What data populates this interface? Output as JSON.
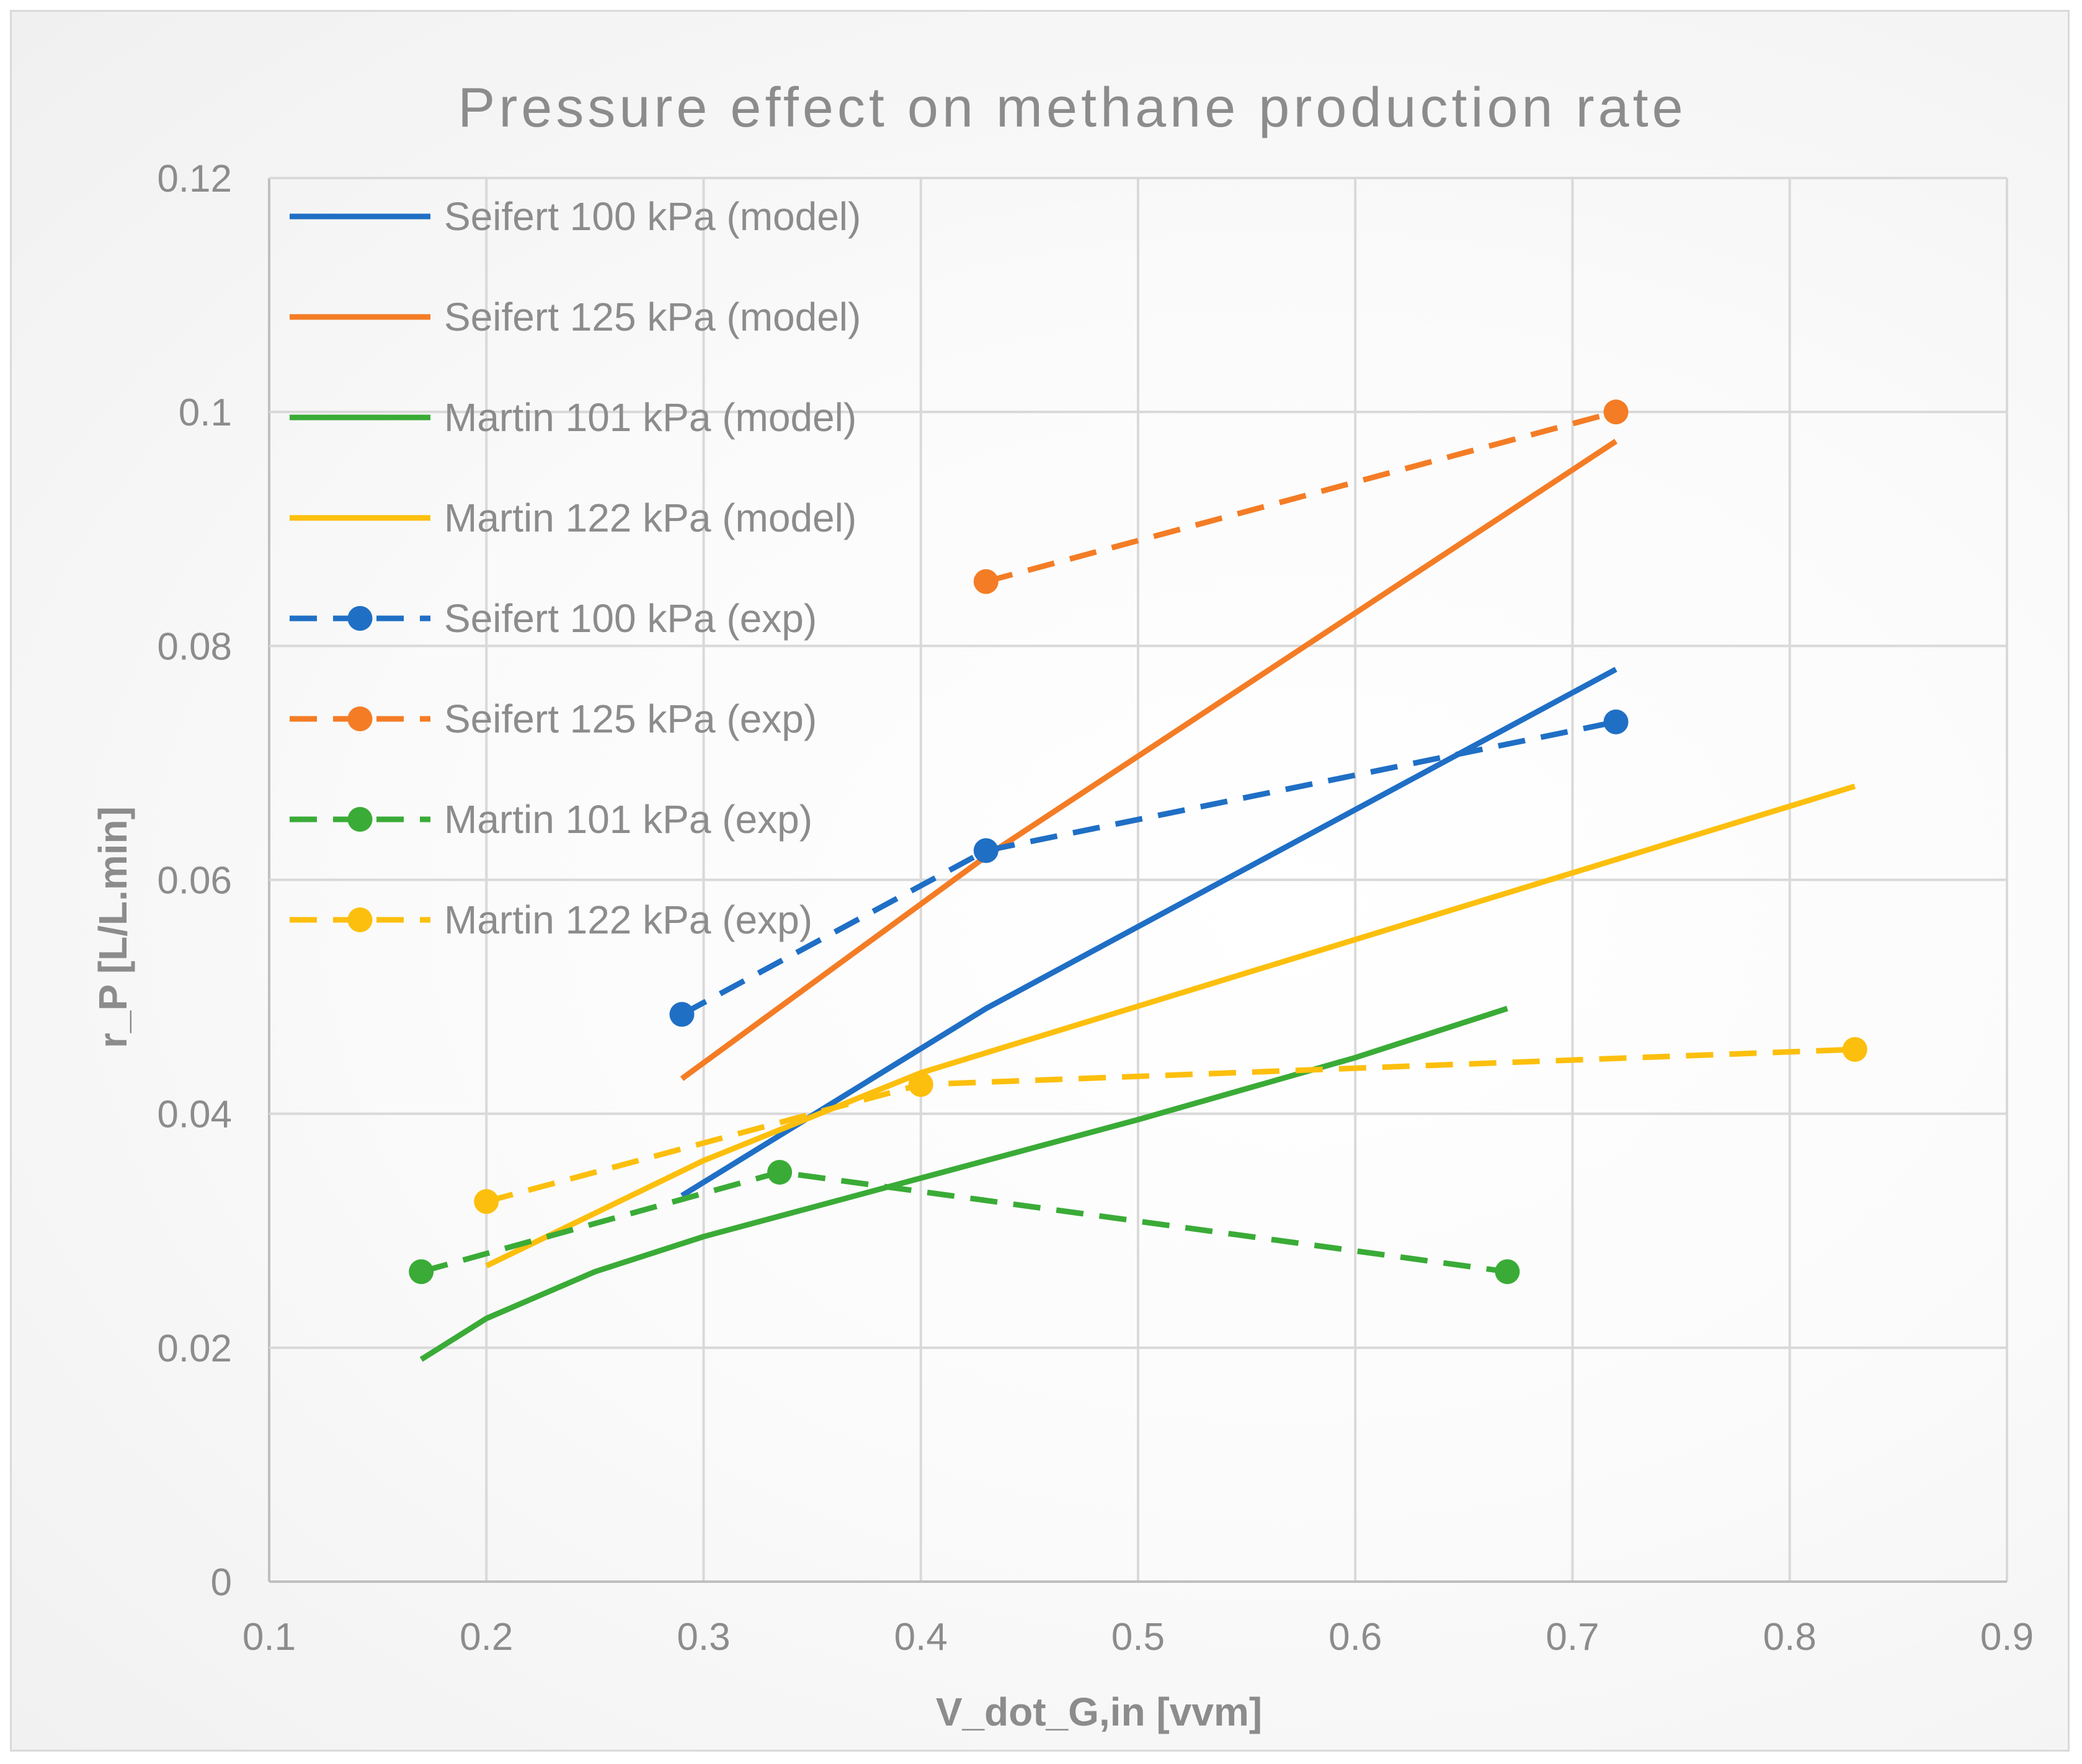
{
  "chart_data": {
    "type": "line",
    "title": "Pressure effect on methane production rate",
    "xlabel": "V_dot_G,in [vvm]",
    "ylabel": "r_P [L/L.min]",
    "xlim": [
      0.1,
      0.9
    ],
    "ylim": [
      0,
      0.12
    ],
    "x_ticks": [
      "0.1",
      "0.2",
      "0.3",
      "0.4",
      "0.5",
      "0.6",
      "0.7",
      "0.8",
      "0.9"
    ],
    "y_ticks": [
      "0",
      "0.02",
      "0.04",
      "0.06",
      "0.08",
      "0.1",
      "0.12"
    ],
    "grid": true,
    "legend_position": "top-left",
    "series": [
      {
        "name": "Seifert 100 kPa (model)",
        "color": "#1f6fc5",
        "style": "solid",
        "markers": false,
        "x": [
          0.29,
          0.43,
          0.72
        ],
        "y": [
          0.033,
          0.049,
          0.078
        ]
      },
      {
        "name": "Seifert 125 kPa (model)",
        "color": "#f47c25",
        "style": "solid",
        "markers": false,
        "x": [
          0.29,
          0.43,
          0.72
        ],
        "y": [
          0.043,
          0.062,
          0.0975
        ]
      },
      {
        "name": "Martin 101 kPa (model)",
        "color": "#3aab37",
        "style": "solid",
        "markers": false,
        "x": [
          0.17,
          0.2,
          0.25,
          0.3,
          0.35,
          0.4,
          0.5,
          0.6,
          0.67
        ],
        "y": [
          0.019,
          0.0225,
          0.0265,
          0.0295,
          0.032,
          0.0345,
          0.0395,
          0.0448,
          0.049
        ]
      },
      {
        "name": "Martin 122 kPa (model)",
        "color": "#fcbf0d",
        "style": "solid",
        "markers": false,
        "x": [
          0.2,
          0.3,
          0.4,
          0.83
        ],
        "y": [
          0.027,
          0.036,
          0.0435,
          0.068
        ]
      },
      {
        "name": "Seifert 100 kPa (exp)",
        "color": "#1f6fc5",
        "style": "dashed",
        "markers": true,
        "x": [
          0.29,
          0.43,
          0.72
        ],
        "y": [
          0.0485,
          0.0625,
          0.0735
        ]
      },
      {
        "name": "Seifert 125 kPa (exp)",
        "color": "#f47c25",
        "style": "dashed",
        "markers": true,
        "x": [
          0.43,
          0.72
        ],
        "y": [
          0.0855,
          0.1
        ]
      },
      {
        "name": "Martin 101 kPa (exp)",
        "color": "#3aab37",
        "style": "dashed",
        "markers": true,
        "x": [
          0.17,
          0.335,
          0.67
        ],
        "y": [
          0.0265,
          0.035,
          0.0265
        ]
      },
      {
        "name": "Martin 122 kPa (exp)",
        "color": "#fcbf0d",
        "style": "dashed",
        "markers": true,
        "x": [
          0.2,
          0.4,
          0.83
        ],
        "y": [
          0.0325,
          0.0425,
          0.0455
        ]
      }
    ]
  }
}
